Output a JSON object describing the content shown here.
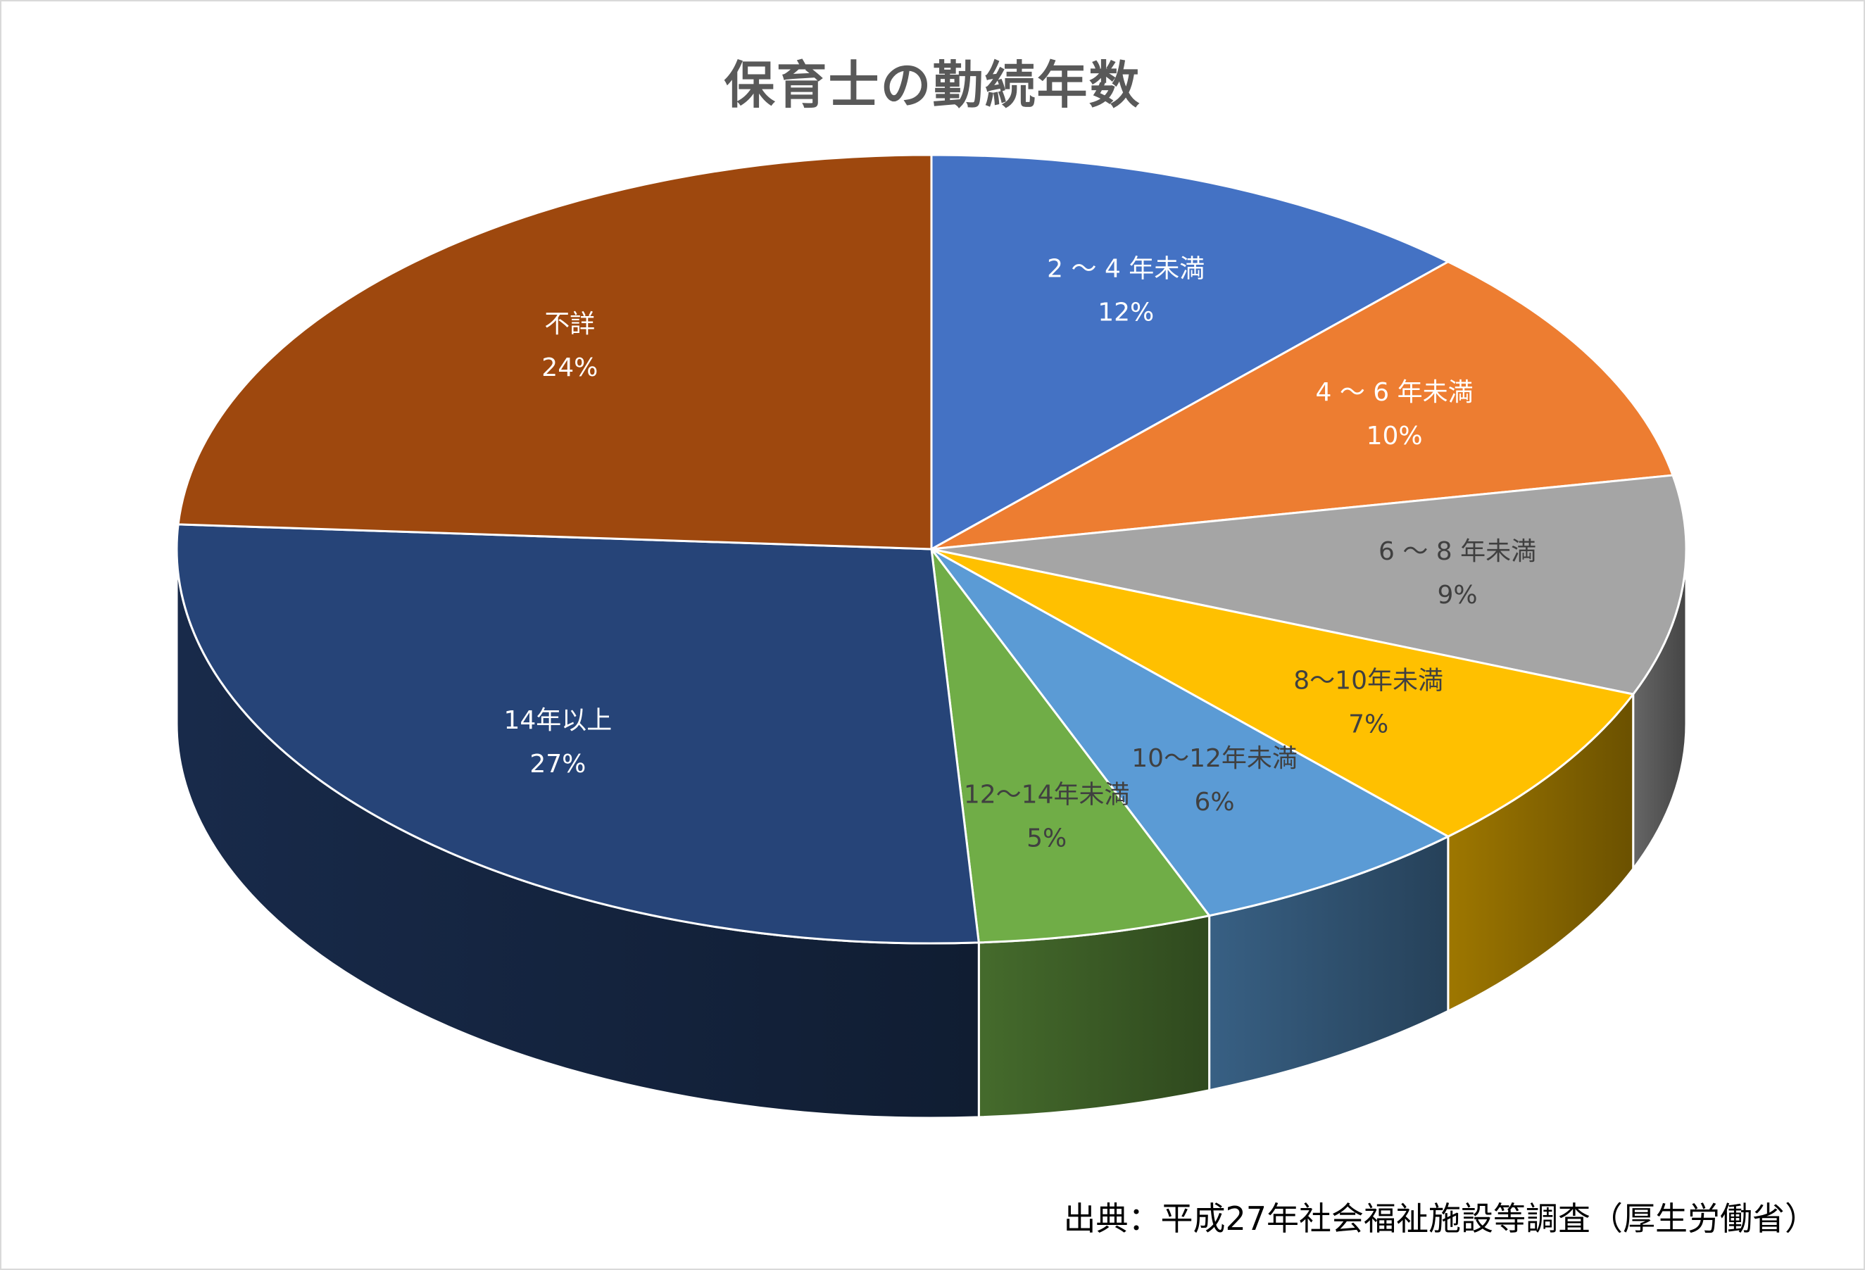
{
  "chart_data": {
    "type": "pie",
    "style": "3d",
    "title": "保育士の勤続年数",
    "categories": [
      "2～4年未満",
      "4～6年未満",
      "6～8年未満",
      "8～10年未満",
      "10～12年未満",
      "12～14年未満",
      "14年以上",
      "不詳"
    ],
    "display_labels": [
      "2 ～ 4 年未満",
      "4 ～ 6 年未満",
      "6 ～ 8 年未満",
      "8～10年未満",
      "10～12年未満",
      "12～14年未満",
      "14年以上",
      "不詳"
    ],
    "values": [
      12,
      10,
      9,
      7,
      6,
      5,
      27,
      24
    ],
    "value_labels": [
      "12%",
      "10%",
      "9%",
      "7%",
      "6%",
      "5%",
      "27%",
      "24%"
    ],
    "colors": [
      "#4472C4",
      "#ED7D31",
      "#A5A5A5",
      "#FFC000",
      "#5B9BD5",
      "#70AD47",
      "#264478",
      "#9E480E"
    ],
    "label_colors": [
      "#ffffff",
      "#ffffff",
      "#404040",
      "#404040",
      "#404040",
      "#404040",
      "#ffffff",
      "#ffffff"
    ],
    "legend": "none"
  },
  "source": "出典：平成27年社会福祉施設等調査（厚生労働省）"
}
